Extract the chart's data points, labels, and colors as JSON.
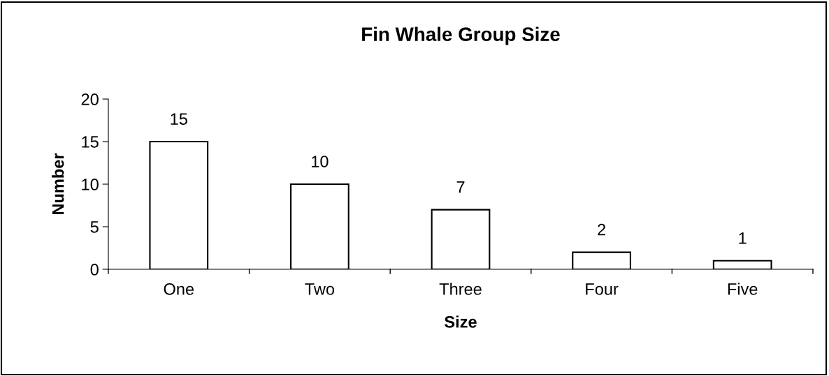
{
  "chart_data": {
    "type": "bar",
    "title": "Fin Whale Group Size",
    "xlabel": "Size",
    "ylabel": "Number",
    "categories": [
      "One",
      "Two",
      "Three",
      "Four",
      "Five"
    ],
    "values": [
      15,
      10,
      7,
      2,
      1
    ],
    "color": "#ffffff",
    "ylim": [
      0,
      20
    ],
    "yticks": [
      0,
      5,
      10,
      15,
      20
    ],
    "grid": false,
    "data_labels": true,
    "legend": false
  }
}
